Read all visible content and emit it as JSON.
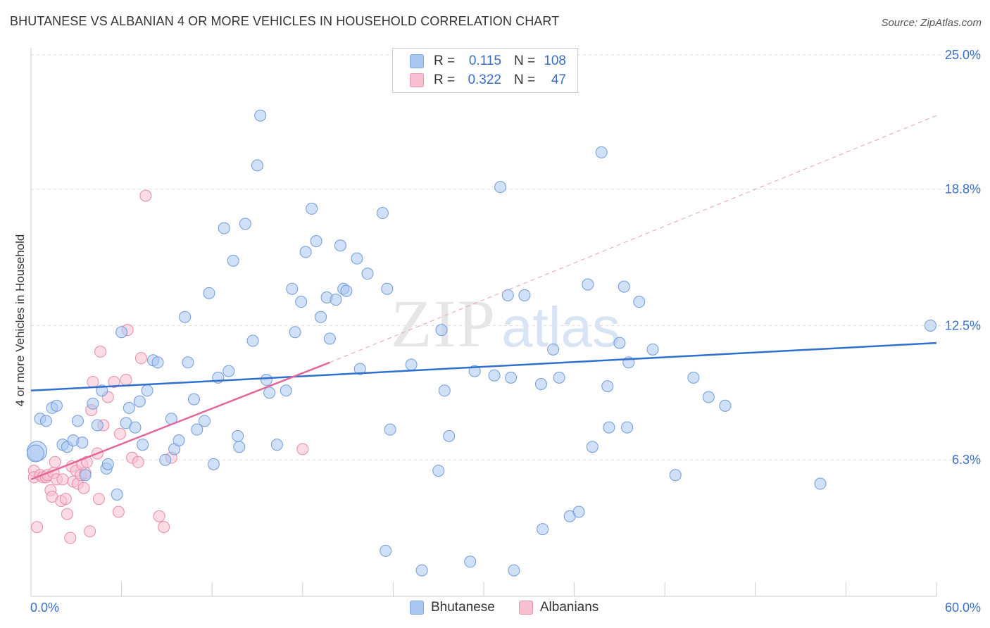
{
  "header": {
    "title": "BHUTANESE VS ALBANIAN 4 OR MORE VEHICLES IN HOUSEHOLD CORRELATION CHART",
    "source": "Source: ZipAtlas.com"
  },
  "watermark": {
    "zip": "ZIP",
    "atlas": "atlas"
  },
  "legend": {
    "rows": [
      {
        "r_label": "R =",
        "r_value": "0.115",
        "n_label": "N =",
        "n_value": "108",
        "color": "#a9c7f0",
        "border": "#7ea7e0"
      },
      {
        "r_label": "R =",
        "r_value": "0.322",
        "n_label": "N =",
        "n_value": "47",
        "color": "#f7bfd0",
        "border": "#ec93ae"
      }
    ]
  },
  "bottom_legend": [
    {
      "label": "Bhutanese",
      "color": "#a9c7f0",
      "border": "#7ea7e0"
    },
    {
      "label": "Albanians",
      "color": "#f7bfd0",
      "border": "#ec93ae"
    }
  ],
  "chart_data": {
    "type": "scatter",
    "title": "BHUTANESE VS ALBANIAN 4 OR MORE VEHICLES IN HOUSEHOLD CORRELATION CHART",
    "xlabel": "",
    "ylabel": "4 or more Vehicles in Household",
    "xlim": [
      0,
      60
    ],
    "ylim": [
      0,
      25
    ],
    "x_tick_labels": [
      {
        "value": 0,
        "label": "0.0%"
      },
      {
        "value": 60,
        "label": "60.0%"
      }
    ],
    "x_minor_ticks": [
      0,
      6,
      12,
      18,
      24,
      30,
      36,
      42,
      48,
      54,
      60
    ],
    "y_ticks": [
      {
        "value": 6.3,
        "label": "6.3%"
      },
      {
        "value": 12.5,
        "label": "12.5%"
      },
      {
        "value": 18.8,
        "label": "18.8%"
      },
      {
        "value": 25.0,
        "label": "25.0%"
      }
    ],
    "grid": true,
    "colors": {
      "blue": "#3a6ec7",
      "blue_fill": "#a9c7f0",
      "blue_line": "#2f6fce",
      "pink_fill": "#f7bfd0",
      "pink_line": "#e3679a",
      "axis_text": "#3a6ec7",
      "grid": "#dddddd"
    },
    "series": [
      {
        "name": "Bhutanese",
        "R": 0.115,
        "N": 108,
        "trend": {
          "x": [
            0,
            60
          ],
          "y": [
            9.5,
            11.7
          ]
        },
        "points": [
          [
            0.4,
            6.7
          ],
          [
            0.3,
            6.6
          ],
          [
            0.6,
            8.2
          ],
          [
            1.0,
            8.1
          ],
          [
            1.4,
            8.7
          ],
          [
            1.7,
            8.8
          ],
          [
            2.1,
            7.0
          ],
          [
            2.4,
            6.9
          ],
          [
            2.8,
            7.2
          ],
          [
            3.1,
            8.1
          ],
          [
            3.4,
            7.1
          ],
          [
            3.6,
            5.6
          ],
          [
            4.1,
            8.9
          ],
          [
            4.4,
            7.9
          ],
          [
            4.7,
            9.5
          ],
          [
            5.0,
            5.9
          ],
          [
            5.1,
            6.1
          ],
          [
            5.7,
            4.7
          ],
          [
            6.0,
            12.2
          ],
          [
            6.3,
            8.0
          ],
          [
            6.5,
            8.7
          ],
          [
            6.9,
            7.8
          ],
          [
            7.2,
            9.0
          ],
          [
            7.4,
            7.0
          ],
          [
            7.7,
            9.5
          ],
          [
            8.1,
            10.9
          ],
          [
            8.4,
            10.8
          ],
          [
            8.9,
            6.3
          ],
          [
            9.3,
            8.2
          ],
          [
            9.5,
            6.8
          ],
          [
            9.8,
            7.2
          ],
          [
            10.2,
            12.9
          ],
          [
            10.4,
            10.8
          ],
          [
            10.8,
            9.1
          ],
          [
            11.0,
            7.7
          ],
          [
            11.5,
            8.1
          ],
          [
            11.8,
            14.0
          ],
          [
            12.1,
            6.1
          ],
          [
            12.4,
            10.1
          ],
          [
            12.8,
            17.0
          ],
          [
            13.1,
            10.4
          ],
          [
            13.4,
            15.5
          ],
          [
            13.7,
            7.4
          ],
          [
            13.8,
            6.9
          ],
          [
            14.2,
            17.2
          ],
          [
            14.7,
            11.8
          ],
          [
            15.0,
            19.9
          ],
          [
            15.2,
            22.2
          ],
          [
            15.6,
            10.0
          ],
          [
            15.8,
            9.4
          ],
          [
            16.3,
            7.0
          ],
          [
            16.9,
            9.5
          ],
          [
            17.3,
            14.2
          ],
          [
            17.5,
            12.2
          ],
          [
            17.9,
            13.6
          ],
          [
            18.2,
            15.9
          ],
          [
            18.6,
            17.9
          ],
          [
            18.9,
            16.4
          ],
          [
            19.2,
            12.9
          ],
          [
            19.6,
            13.8
          ],
          [
            19.8,
            11.9
          ],
          [
            20.2,
            13.7
          ],
          [
            20.5,
            16.2
          ],
          [
            20.7,
            14.2
          ],
          [
            20.9,
            14.1
          ],
          [
            21.6,
            15.6
          ],
          [
            21.8,
            10.5
          ],
          [
            22.3,
            14.9
          ],
          [
            23.3,
            17.7
          ],
          [
            23.5,
            2.1
          ],
          [
            23.6,
            14.2
          ],
          [
            23.8,
            7.7
          ],
          [
            25.2,
            10.7
          ],
          [
            25.9,
            1.2
          ],
          [
            27.0,
            5.8
          ],
          [
            27.2,
            12.3
          ],
          [
            27.4,
            9.5
          ],
          [
            27.7,
            7.4
          ],
          [
            29.1,
            1.6
          ],
          [
            29.4,
            10.4
          ],
          [
            30.7,
            10.2
          ],
          [
            31.1,
            18.9
          ],
          [
            31.6,
            13.9
          ],
          [
            31.8,
            10.1
          ],
          [
            32.0,
            1.2
          ],
          [
            32.7,
            13.9
          ],
          [
            33.8,
            9.8
          ],
          [
            33.9,
            3.1
          ],
          [
            34.6,
            11.4
          ],
          [
            35.0,
            10.1
          ],
          [
            35.7,
            3.7
          ],
          [
            36.3,
            3.9
          ],
          [
            36.9,
            14.4
          ],
          [
            37.2,
            6.9
          ],
          [
            37.8,
            20.5
          ],
          [
            38.2,
            9.7
          ],
          [
            38.3,
            7.8
          ],
          [
            39.0,
            11.7
          ],
          [
            39.3,
            14.3
          ],
          [
            39.5,
            7.8
          ],
          [
            39.6,
            10.8
          ],
          [
            40.3,
            13.6
          ],
          [
            41.2,
            11.4
          ],
          [
            42.7,
            5.6
          ],
          [
            43.9,
            10.1
          ],
          [
            44.9,
            9.2
          ],
          [
            46.0,
            8.8
          ],
          [
            52.3,
            5.2
          ],
          [
            59.6,
            12.5
          ]
        ]
      },
      {
        "name": "Albanians",
        "R": 0.322,
        "N": 47,
        "trend": {
          "x": [
            0,
            19.8
          ],
          "y": [
            5.4,
            10.8
          ]
        },
        "trend_extension": {
          "x": [
            19.8,
            60
          ],
          "y": [
            10.8,
            22.2
          ]
        },
        "points": [
          [
            0.2,
            5.8
          ],
          [
            0.2,
            5.5
          ],
          [
            0.4,
            3.2
          ],
          [
            0.6,
            5.6
          ],
          [
            0.8,
            5.5
          ],
          [
            1.0,
            5.5
          ],
          [
            1.1,
            5.6
          ],
          [
            1.3,
            4.9
          ],
          [
            1.4,
            4.6
          ],
          [
            1.5,
            5.7
          ],
          [
            1.6,
            6.2
          ],
          [
            1.7,
            5.4
          ],
          [
            2.0,
            4.4
          ],
          [
            2.1,
            5.4
          ],
          [
            2.3,
            4.5
          ],
          [
            2.4,
            3.8
          ],
          [
            2.6,
            2.7
          ],
          [
            2.7,
            6.0
          ],
          [
            2.8,
            5.3
          ],
          [
            3.0,
            5.8
          ],
          [
            3.1,
            5.2
          ],
          [
            3.3,
            5.6
          ],
          [
            3.4,
            6.1
          ],
          [
            3.5,
            5.0
          ],
          [
            3.6,
            5.7
          ],
          [
            3.7,
            6.2
          ],
          [
            3.9,
            3.0
          ],
          [
            4.0,
            8.6
          ],
          [
            4.1,
            9.9
          ],
          [
            4.4,
            6.6
          ],
          [
            4.5,
            4.5
          ],
          [
            4.6,
            11.3
          ],
          [
            4.8,
            7.9
          ],
          [
            5.1,
            9.2
          ],
          [
            5.5,
            9.9
          ],
          [
            5.8,
            3.9
          ],
          [
            5.9,
            7.5
          ],
          [
            6.3,
            10.0
          ],
          [
            6.4,
            12.3
          ],
          [
            6.7,
            6.4
          ],
          [
            7.1,
            6.2
          ],
          [
            7.3,
            11.0
          ],
          [
            7.6,
            18.5
          ],
          [
            8.5,
            3.7
          ],
          [
            8.8,
            3.2
          ],
          [
            9.3,
            6.4
          ],
          [
            18.0,
            6.8
          ]
        ]
      }
    ]
  }
}
